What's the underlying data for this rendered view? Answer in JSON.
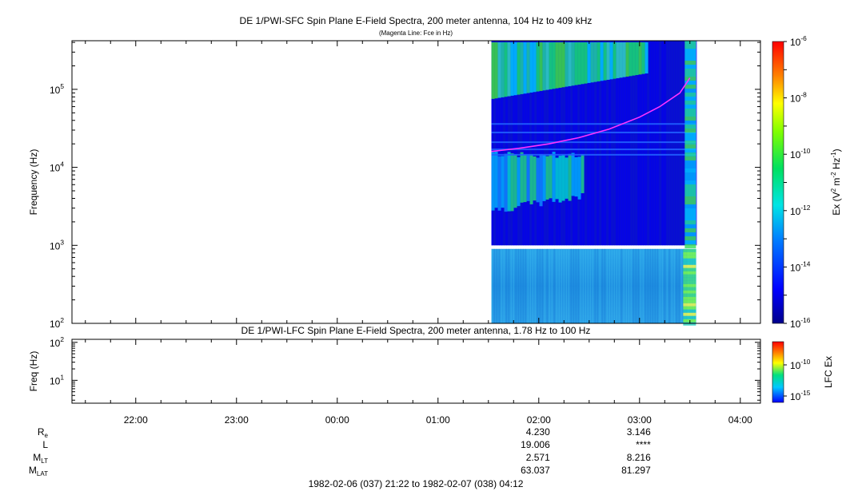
{
  "chart_data": [
    {
      "type": "heatmap",
      "title": "DE 1/PWI-SFC  Spin Plane E-Field Spectra, 200 meter antenna, 104 Hz to 409 kHz",
      "subtitle": "(Magenta Line: Fce in Hz)",
      "ylabel": "Frequency (Hz)",
      "yscale": "log",
      "ylim": [
        100,
        420000
      ],
      "ytick_labels": [
        {
          "base": "10",
          "exp": "2"
        },
        {
          "base": "10",
          "exp": "3"
        },
        {
          "base": "10",
          "exp": "4"
        },
        {
          "base": "10",
          "exp": "5"
        }
      ],
      "data_time_range_hours": [
        1.53,
        3.56
      ],
      "colorbar": {
        "label_prefix": "Ex (V",
        "label_sup1": "2",
        "label_mid": " m",
        "label_sup2": "-2",
        "label_mid2": " Hz",
        "label_sup3": "-1",
        "label_suffix": ")",
        "range_log": [
          -16,
          -6
        ],
        "ticks": [
          {
            "base": "10",
            "exp": "-6"
          },
          {
            "base": "10",
            "exp": "-8"
          },
          {
            "base": "10",
            "exp": "-10"
          },
          {
            "base": "10",
            "exp": "-12"
          },
          {
            "base": "10",
            "exp": "-14"
          },
          {
            "base": "10",
            "exp": "-16"
          }
        ]
      },
      "fce_line": {
        "color": "#ff33ff",
        "time_hours": [
          1.53,
          1.8,
          2.1,
          2.4,
          2.7,
          3.0,
          3.2,
          3.4,
          3.5
        ],
        "freq_hz": [
          16000,
          17500,
          20000,
          24000,
          31000,
          44000,
          60000,
          90000,
          140000
        ]
      }
    },
    {
      "type": "heatmap",
      "title": "DE 1/PWI-LFC  Spin Plane E-Field Spectra, 200 meter antenna, 1.78 Hz to 100 Hz",
      "ylabel": "Freq (Hz)",
      "yscale": "log",
      "ylim": [
        2.5,
        120
      ],
      "ytick_labels": [
        {
          "base": "10",
          "exp": "1"
        },
        {
          "base": "10",
          "exp": "2"
        }
      ],
      "data_time_range_hours": [
        1.53,
        3.56
      ],
      "colorbar": {
        "label": "LFC Ex",
        "ticks": [
          {
            "base": "10",
            "exp": "-10"
          },
          {
            "base": "10",
            "exp": "-15"
          }
        ]
      }
    }
  ],
  "time_axis": {
    "range_hours": [
      -2.633,
      4.2
    ],
    "ticks": [
      {
        "h": -2,
        "label": "22:00"
      },
      {
        "h": -1,
        "label": "23:00"
      },
      {
        "h": 0,
        "label": "00:00"
      },
      {
        "h": 1,
        "label": "01:00"
      },
      {
        "h": 2,
        "label": "02:00"
      },
      {
        "h": 3,
        "label": "03:00"
      },
      {
        "h": 4,
        "label": "04:00"
      }
    ]
  },
  "ephemeris": {
    "labels": [
      {
        "main": "R",
        "sub": "e"
      },
      {
        "main": "L",
        "sub": ""
      },
      {
        "main": "M",
        "sub": "LT"
      },
      {
        "main": "M",
        "sub": "LAT"
      }
    ],
    "columns": [
      {
        "h": 2,
        "values": [
          "4.230",
          "19.006",
          "2.571",
          "63.037"
        ]
      },
      {
        "h": 3,
        "values": [
          "3.146",
          "****",
          "8.216",
          "81.297"
        ]
      }
    ]
  },
  "footer": {
    "range_text": "1982-02-06 (037) 21:22 to 1982-02-07 (038) 04:12"
  }
}
